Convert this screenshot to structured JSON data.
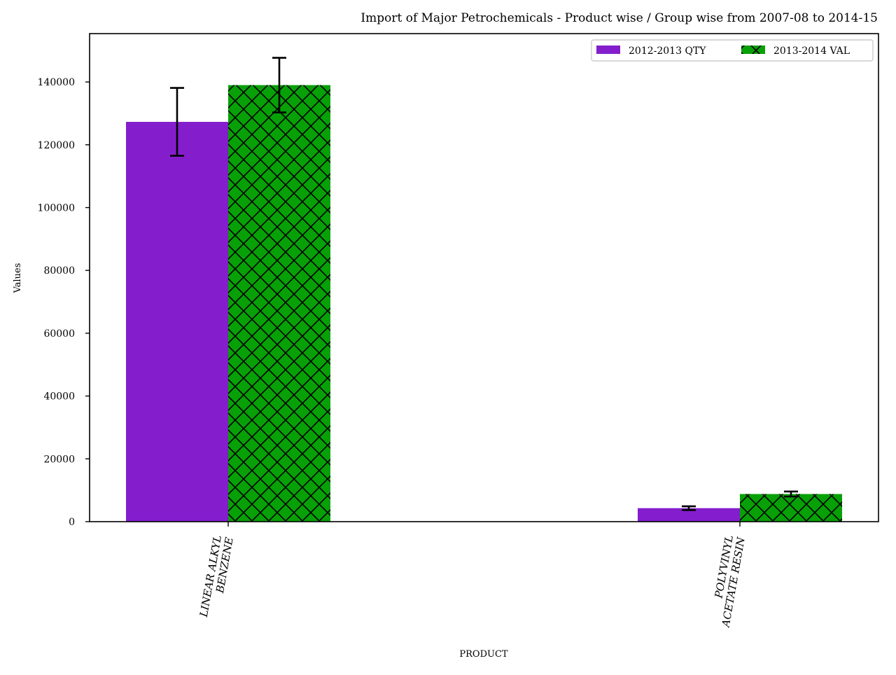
{
  "chart_data": {
    "type": "bar",
    "title": "Import of Major Petrochemicals - Product wise / Group wise from 2007-08 to 2014-15",
    "xlabel": "PRODUCT",
    "ylabel": "Values",
    "categories": [
      [
        "LINEAR ALKYL",
        "BENZENE"
      ],
      [
        "POLYVINYL",
        "ACETATE RESIN"
      ]
    ],
    "series": [
      {
        "name": "2012-2013 QTY",
        "color": "#841ecc",
        "hatch": "none",
        "values": [
          127300,
          4300
        ],
        "errors": [
          10800,
          600
        ]
      },
      {
        "name": "2013-2014 VAL",
        "color": "#07a007",
        "hatch": "crosshatch",
        "values": [
          139000,
          8800
        ],
        "errors": [
          8700,
          800
        ]
      }
    ],
    "ylim": [
      0,
      155400
    ],
    "yticks": [
      0,
      20000,
      40000,
      60000,
      80000,
      100000,
      120000,
      140000
    ],
    "grid": false,
    "legend": {
      "placement": "top-right",
      "ncols": 2
    }
  }
}
